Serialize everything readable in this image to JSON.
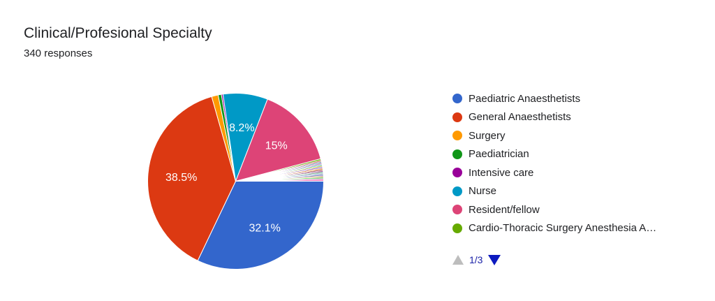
{
  "header": {
    "title": "Clinical/Profesional Specialty",
    "subtitle": "340 responses"
  },
  "chart_data": {
    "type": "pie",
    "categories": [
      "Paediatric Anaesthetists",
      "General Anaesthetists",
      "Surgery",
      "Paediatrician",
      "Intensive care",
      "Nurse",
      "Resident/fellow",
      "Cardio-Thoracic Surgery Anesthesia A…"
    ],
    "values": [
      32.1,
      38.5,
      1.2,
      0.6,
      0.3,
      8.2,
      15,
      0.3
    ],
    "colors": [
      "#3366cc",
      "#dc3912",
      "#ff9900",
      "#109618",
      "#990099",
      "#0099c6",
      "#dd4477",
      "#66aa00"
    ],
    "data_labels": [
      "32.1%",
      "38.5%",
      "",
      "",
      "",
      "8.2%",
      "15%",
      ""
    ],
    "other_slices_count": 16,
    "other_slices_total": 3.8,
    "other_slices_colors": [
      "#b82e2e",
      "#316395",
      "#994499",
      "#22aa99",
      "#aaaa11",
      "#6633cc",
      "#e67300",
      "#8b0707",
      "#651067",
      "#329262",
      "#5574a6",
      "#3b3eac",
      "#b77322",
      "#16d620",
      "#b91383",
      "#f4359e"
    ],
    "start_angle_deg": 90,
    "direction": "clockwise",
    "legend_position": "right"
  },
  "pager": {
    "label": "1/3",
    "up_icon": "triangle-up-icon",
    "down_icon": "triangle-down-icon"
  }
}
